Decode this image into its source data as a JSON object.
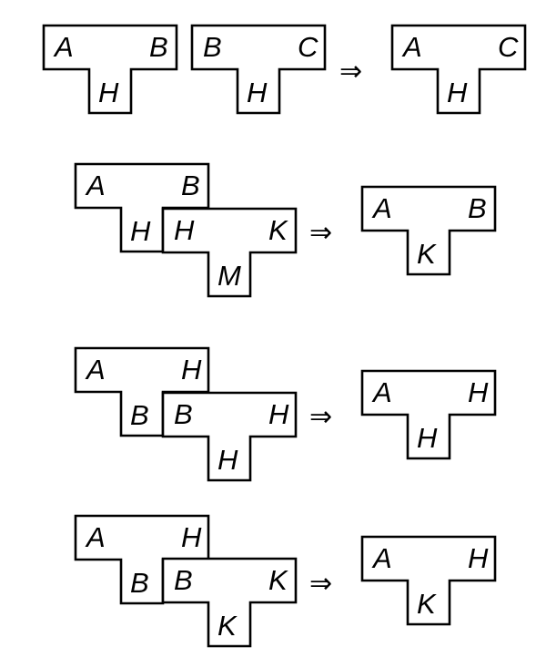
{
  "rules": [
    {
      "inputs": [
        {
          "left": "A",
          "right": "B",
          "bottom": "H"
        },
        {
          "left": "B",
          "right": "C",
          "bottom": "H"
        }
      ],
      "output": {
        "left": "A",
        "right": "C",
        "bottom": "H"
      }
    },
    {
      "inputs": [
        {
          "left": "A",
          "right": "B",
          "bottom": "H"
        },
        {
          "left": "H",
          "right": "K",
          "bottom": "M"
        }
      ],
      "output": {
        "left": "A",
        "right": "B",
        "bottom": "K"
      }
    },
    {
      "inputs": [
        {
          "left": "A",
          "right": "H",
          "bottom": "B"
        },
        {
          "left": "B",
          "right": "H",
          "bottom": "H"
        }
      ],
      "output": {
        "left": "A",
        "right": "H",
        "bottom": "H"
      }
    },
    {
      "inputs": [
        {
          "left": "A",
          "right": "H",
          "bottom": "B"
        },
        {
          "left": "B",
          "right": "K",
          "bottom": "K"
        }
      ],
      "output": {
        "left": "A",
        "right": "H",
        "bottom": "K"
      }
    }
  ],
  "arrow_symbol": "⇒"
}
